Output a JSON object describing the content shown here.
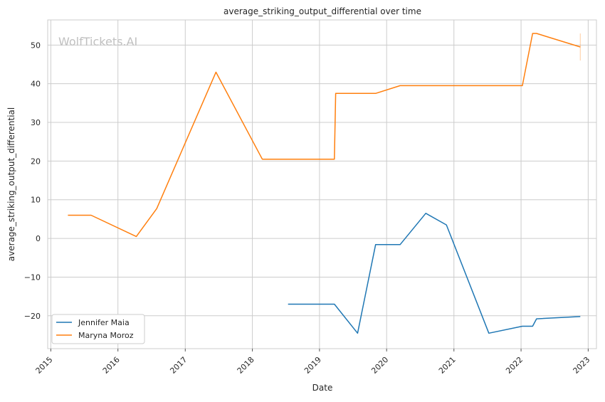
{
  "chart_data": {
    "type": "line",
    "title": "average_striking_output_differential over time",
    "xlabel": "Date",
    "ylabel": "average_striking_output_differential",
    "watermark": "WolfTickets.AI",
    "xlim": [
      "2014-12-15",
      "2023-02-15"
    ],
    "ylim": [
      -28.5,
      56.5
    ],
    "x_ticks": [
      "2015",
      "2016",
      "2017",
      "2018",
      "2019",
      "2020",
      "2021",
      "2022",
      "2023"
    ],
    "y_ticks": [
      -20,
      -10,
      0,
      10,
      20,
      30,
      40,
      50
    ],
    "grid": true,
    "legend_position": "lower-left",
    "series": [
      {
        "name": "Jennifer Maia",
        "color": "#1f77b4",
        "points": [
          [
            "2018-07-14",
            -17.0
          ],
          [
            "2019-03-23",
            -17.0
          ],
          [
            "2019-07-27",
            -24.5
          ],
          [
            "2019-11-02",
            -1.6
          ],
          [
            "2020-03-14",
            -1.6
          ],
          [
            "2020-08-01",
            6.5
          ],
          [
            "2020-11-21",
            3.5
          ],
          [
            "2021-07-10",
            -24.5
          ],
          [
            "2022-01-08",
            -22.7
          ],
          [
            "2022-03-05",
            -22.7
          ],
          [
            "2022-03-26",
            -20.8
          ],
          [
            "2022-11-19",
            -20.2
          ]
        ]
      },
      {
        "name": "Maryna Moroz",
        "color": "#ff7f0e",
        "points": [
          [
            "2015-04-04",
            6.0
          ],
          [
            "2015-08-08",
            6.0
          ],
          [
            "2016-04-10",
            0.5
          ],
          [
            "2016-07-30",
            7.7
          ],
          [
            "2017-06-17",
            43.0
          ],
          [
            "2018-02-24",
            20.5
          ],
          [
            "2019-03-23",
            20.5
          ],
          [
            "2019-03-30",
            37.5
          ],
          [
            "2019-11-02",
            37.5
          ],
          [
            "2020-03-14",
            39.5
          ],
          [
            "2022-01-08",
            39.5
          ],
          [
            "2022-03-05",
            53.0
          ],
          [
            "2022-03-26",
            53.0
          ],
          [
            "2022-11-19",
            49.5
          ]
        ]
      }
    ],
    "errorbar": {
      "color": "#ff7f0e",
      "x": "2022-11-19",
      "low": 46.0,
      "high": 53.0
    }
  }
}
